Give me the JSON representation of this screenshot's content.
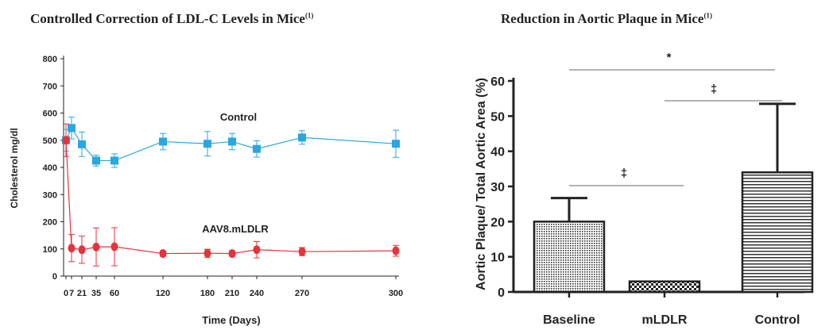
{
  "colors": {
    "control": "#2aa6e0",
    "mldlr": "#e8323c",
    "axis": "#222222",
    "sig_line": "#999999"
  },
  "chart_data": [
    {
      "type": "line",
      "title": "Controlled Correction of LDL-C Levels in Mice",
      "title_sup": "(1)",
      "xlabel": "Time (Days)",
      "ylabel": "Cholesterol mg/dl",
      "ylim": [
        0,
        800
      ],
      "yticks": [
        "0",
        "100",
        "200",
        "300",
        "400",
        "500",
        "600",
        "700",
        "800"
      ],
      "xtick_labels": [
        {
          "x": 0,
          "label": "0"
        },
        {
          "x": 7,
          "label": "7"
        },
        {
          "x": 21,
          "label": "21"
        },
        {
          "x": 35,
          "label": "35"
        },
        {
          "x": 60,
          "label": "60"
        },
        {
          "x": 120,
          "label": "120"
        },
        {
          "x": 180,
          "label": "180"
        },
        {
          "x": 210,
          "label": "210"
        },
        {
          "x": 240,
          "label": "240"
        },
        {
          "x": 270,
          "label": "270"
        },
        {
          "x": 300,
          "label": "300"
        }
      ],
      "series": [
        {
          "name": "Control",
          "marker": "square",
          "x": [
            0,
            7,
            21,
            35,
            60,
            120,
            180,
            210,
            240,
            270,
            300
          ],
          "y": [
            500,
            545,
            485,
            425,
            425,
            495,
            487,
            495,
            468,
            510,
            487
          ],
          "err": [
            40,
            40,
            45,
            20,
            25,
            30,
            45,
            30,
            30,
            25,
            50
          ]
        },
        {
          "name": "AAV8.mLDLR",
          "marker": "circle",
          "x": [
            0,
            7,
            21,
            35,
            60,
            120,
            180,
            210,
            240,
            270,
            300
          ],
          "y": [
            500,
            103,
            97,
            107,
            108,
            83,
            84,
            83,
            97,
            90,
            93
          ],
          "err": [
            60,
            50,
            50,
            70,
            70,
            10,
            15,
            10,
            30,
            15,
            20
          ]
        }
      ],
      "grid": false
    },
    {
      "type": "bar",
      "title": "Reduction in Aortic Plaque in Mice",
      "title_sup": "(1)",
      "ylabel": "Aortic Plaque/ Total Aortic Area (%)",
      "ylim": [
        0,
        60
      ],
      "yticks": [
        "0",
        "10",
        "20",
        "30",
        "40",
        "50",
        "60"
      ],
      "categories": [
        "Baseline",
        "mLDLR",
        "Control"
      ],
      "values": [
        20,
        3,
        34
      ],
      "err": [
        6.7,
        0,
        19.5
      ],
      "significance": [
        {
          "from": "Baseline",
          "to": "Control",
          "label": "*"
        },
        {
          "from": "mLDLR",
          "to": "Control",
          "label": "‡"
        },
        {
          "from": "Baseline",
          "to": "mLDLR",
          "label": "‡"
        }
      ],
      "grid": false
    }
  ]
}
